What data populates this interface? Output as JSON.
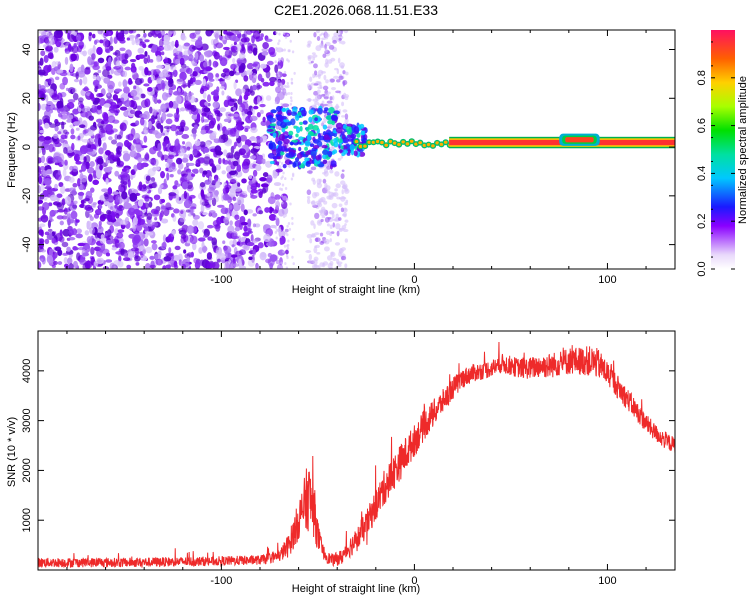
{
  "figure_title": "C2E1.2026.068.11.51.E33",
  "colors": {
    "snr_line": "#ee2a2a",
    "ridge_core": "#ff3030",
    "ridge_outer": "#00d000",
    "scatter_dense": "#6a00e0",
    "scatter_light": "#c9a6f2",
    "axes": "#000000"
  },
  "chart_data": [
    {
      "type": "heatmap",
      "name": "spectrogram",
      "title": "C2E1.2026.068.11.51.E33",
      "xlabel": "Height of straight line (km)",
      "ylabel": "Frequency (Hz)",
      "xlim": [
        -195,
        135
      ],
      "ylim": [
        -50,
        48
      ],
      "x_ticks": [
        -100,
        0,
        100
      ],
      "x_tick_labels": [
        "-100",
        "0",
        "100"
      ],
      "y_ticks": [
        -40,
        -20,
        0,
        20,
        40
      ],
      "y_tick_labels": [
        "-40",
        "-20",
        "0",
        "20",
        "40"
      ],
      "colorbar": {
        "label": "Normalized spectral amplitude",
        "range": [
          0,
          1
        ],
        "ticks": [
          0.0,
          0.2,
          0.4,
          0.6,
          0.8
        ],
        "tick_labels": [
          "0.0",
          "0.2",
          "0.4",
          "0.6",
          "0.8"
        ]
      },
      "regions": {
        "noise_dense_x": [
          -195,
          -72
        ],
        "noise_sparse_x": [
          -55,
          -35
        ],
        "transition_x": [
          -75,
          -25
        ],
        "ridge_start_x": -25,
        "ridge_end_x": 135,
        "ridge_frequency_hz": [
          0,
          3
        ]
      }
    },
    {
      "type": "line",
      "name": "snr",
      "xlabel": "Height of straight line (km)",
      "ylabel": "SNR (10 * v/v)",
      "xlim": [
        -195,
        135
      ],
      "ylim": [
        0,
        4800
      ],
      "x_ticks": [
        -100,
        0,
        100
      ],
      "x_tick_labels": [
        "-100",
        "0",
        "100"
      ],
      "y_ticks": [
        1000,
        2000,
        3000,
        4000
      ],
      "y_tick_labels": [
        "1000",
        "2000",
        "3000",
        "4000"
      ],
      "series": [
        {
          "name": "SNR",
          "x": [
            -195,
            -150,
            -100,
            -80,
            -70,
            -65,
            -60,
            -57,
            -55,
            -52,
            -50,
            -48,
            -45,
            -42,
            -38,
            -35,
            -30,
            -25,
            -20,
            -15,
            -10,
            -5,
            0,
            5,
            10,
            15,
            20,
            25,
            30,
            35,
            40,
            45,
            50,
            55,
            60,
            65,
            70,
            75,
            80,
            85,
            90,
            95,
            100,
            105,
            110,
            115,
            120,
            125,
            130,
            135
          ],
          "values": [
            150,
            150,
            180,
            200,
            280,
            500,
            1000,
            1300,
            1500,
            1200,
            700,
            400,
            250,
            200,
            250,
            400,
            600,
            900,
            1300,
            1700,
            2000,
            2300,
            2600,
            2900,
            3150,
            3400,
            3650,
            3850,
            3950,
            4000,
            4050,
            4150,
            4100,
            4050,
            4050,
            4100,
            4100,
            4150,
            4200,
            4200,
            4200,
            4150,
            3950,
            3700,
            3450,
            3200,
            2950,
            2750,
            2600,
            2500
          ],
          "noise_amplitude": [
            120,
            120,
            120,
            120,
            150,
            300,
            500,
            700,
            900,
            700,
            400,
            200,
            150,
            150,
            200,
            250,
            300,
            350,
            400,
            450,
            450,
            450,
            400,
            380,
            350,
            300,
            280,
            250,
            230,
            220,
            220,
            250,
            250,
            250,
            280,
            300,
            320,
            320,
            350,
            350,
            380,
            380,
            320,
            300,
            280,
            260,
            240,
            220,
            220,
            200
          ]
        }
      ]
    }
  ]
}
